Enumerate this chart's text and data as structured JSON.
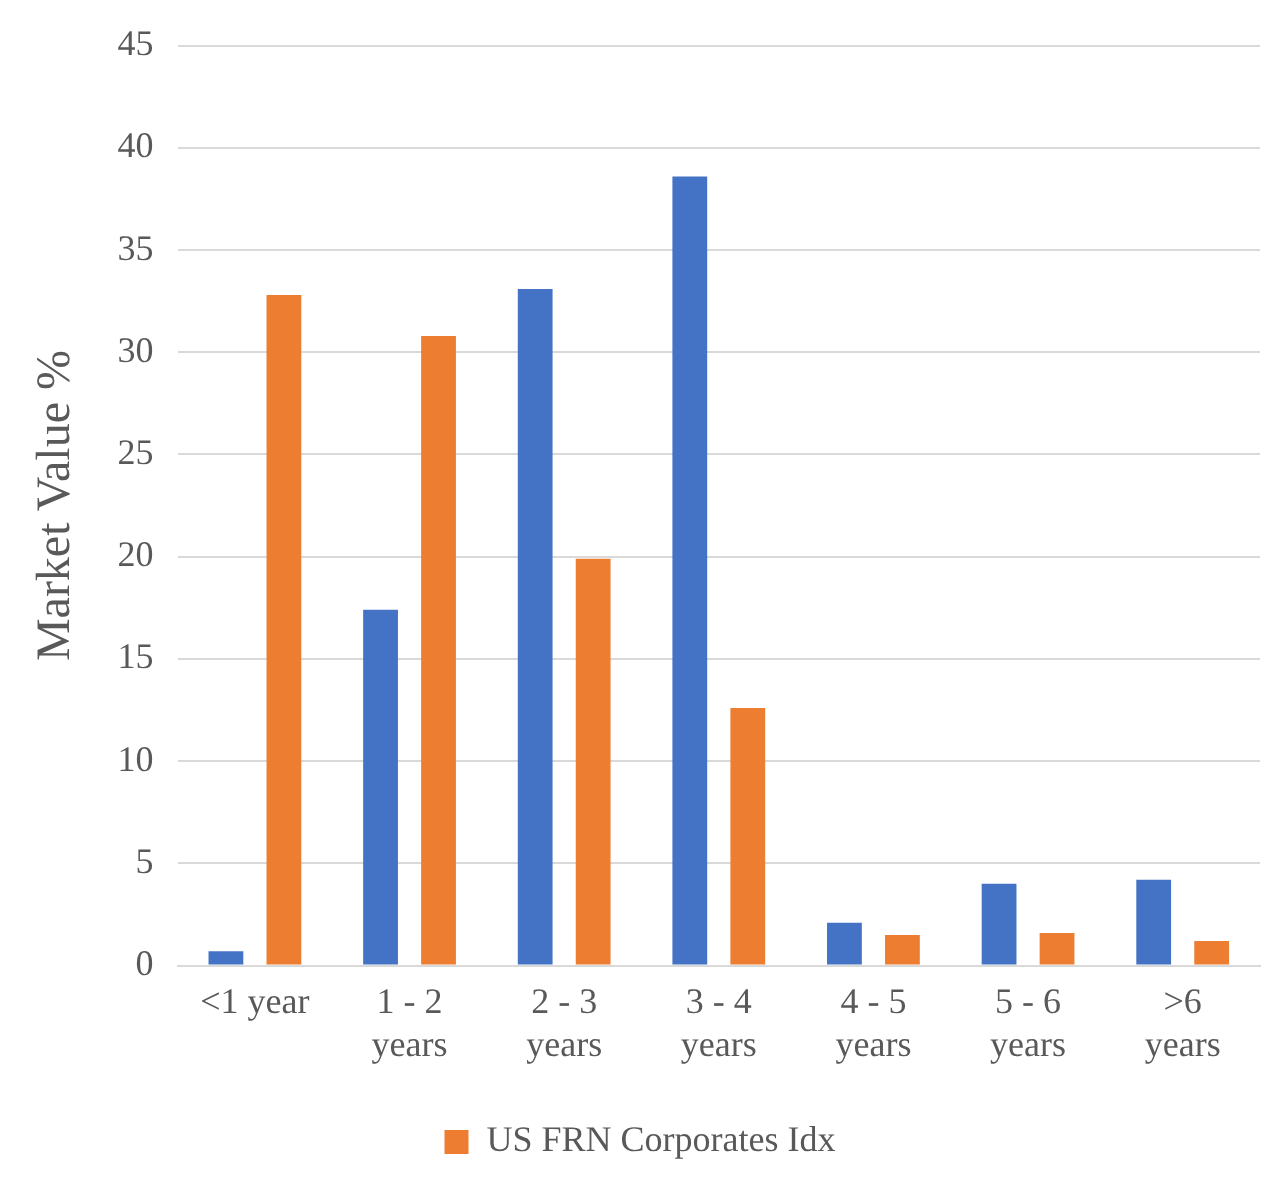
{
  "chart_data": {
    "type": "bar",
    "ylabel": "Market Value %",
    "categories": [
      "<1 year",
      "1 - 2 years",
      "2 - 3 years",
      "3 - 4 years",
      "4 - 5 years",
      "5 - 6 years",
      ">6 years"
    ],
    "series": [
      {
        "color": "#4472c4",
        "values": [
          0.7,
          17.4,
          33.1,
          38.6,
          2.1,
          4.0,
          4.2
        ]
      },
      {
        "name": "US FRN Corporates Idx",
        "color": "#ed7d31",
        "values": [
          32.8,
          30.8,
          19.9,
          12.6,
          1.5,
          1.6,
          1.2
        ]
      }
    ],
    "ylim": [
      0,
      45
    ],
    "yticks": [
      0,
      5,
      10,
      15,
      20,
      25,
      30,
      35,
      40,
      45
    ],
    "grid": "y",
    "legend": "bottom"
  }
}
